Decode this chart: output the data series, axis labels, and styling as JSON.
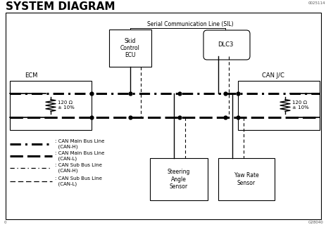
{
  "title": "SYSTEM DIAGRAM",
  "bg_color": "#ffffff",
  "title_fontsize": 11,
  "top_label": "Serial Communication Line (SIL)",
  "ecm_label": "ECM",
  "canjc_label": "CAN J/C",
  "skid_label": "Skid\nControl\nECU",
  "dlc3_label": "DLC3",
  "steering_label": "Steering\nAngle\nSensor",
  "yaw_label": "Yaw Rate\nSensor",
  "resistor_label": "120 Ω\n± 10%",
  "corner_label": "0025114",
  "bottom_label": "G28040"
}
